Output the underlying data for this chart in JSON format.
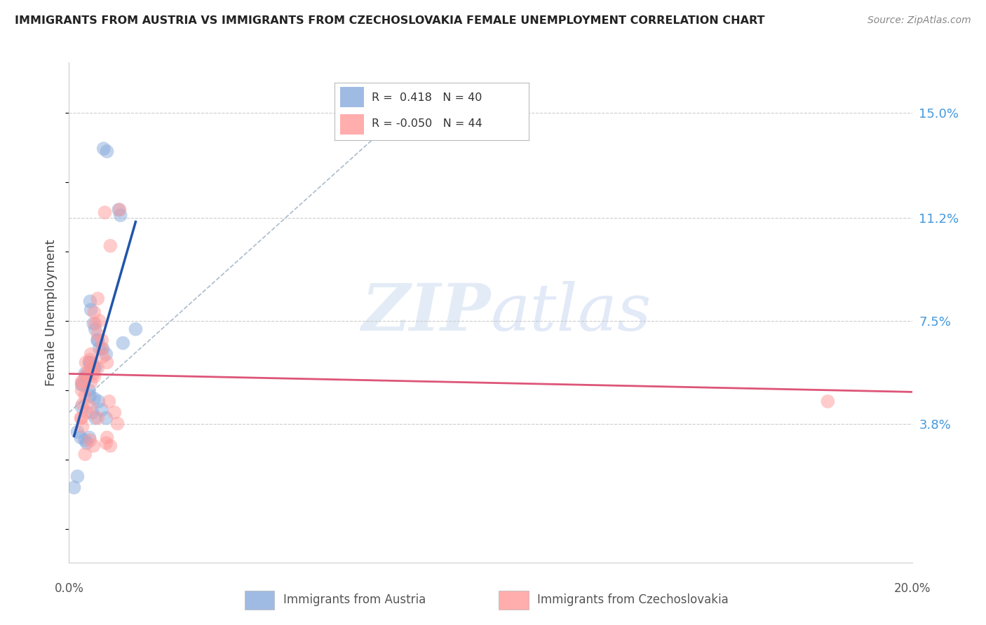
{
  "title": "IMMIGRANTS FROM AUSTRIA VS IMMIGRANTS FROM CZECHOSLOVAKIA FEMALE UNEMPLOYMENT CORRELATION CHART",
  "source": "Source: ZipAtlas.com",
  "ylabel": "Female Unemployment",
  "ylabel_right_labels": [
    "15.0%",
    "11.2%",
    "7.5%",
    "3.8%"
  ],
  "ylabel_right_vals": [
    0.15,
    0.112,
    0.075,
    0.038
  ],
  "xlim": [
    0.0,
    0.2
  ],
  "ylim": [
    -0.012,
    0.168
  ],
  "blue_color": "#88AADD",
  "pink_color": "#FF9999",
  "blue_line_color": "#2255AA",
  "pink_line_color": "#DD5577",
  "dashed_line_color": "#AABBCC",
  "austria_x": [
    0.0082,
    0.009,
    0.0118,
    0.0122,
    0.005,
    0.0052,
    0.0058,
    0.0062,
    0.0068,
    0.0072,
    0.0048,
    0.005,
    0.006,
    0.0062,
    0.004,
    0.0042,
    0.003,
    0.0032,
    0.0038,
    0.0068,
    0.008,
    0.0088,
    0.0128,
    0.0158,
    0.0048,
    0.005,
    0.006,
    0.003,
    0.007,
    0.0078,
    0.0055,
    0.0062,
    0.002,
    0.0028,
    0.0038,
    0.0042,
    0.0048,
    0.0088,
    0.002,
    0.0012
  ],
  "austria_y": [
    0.137,
    0.136,
    0.115,
    0.113,
    0.082,
    0.079,
    0.074,
    0.072,
    0.068,
    0.065,
    0.06,
    0.06,
    0.058,
    0.058,
    0.055,
    0.055,
    0.052,
    0.052,
    0.056,
    0.068,
    0.065,
    0.063,
    0.067,
    0.072,
    0.05,
    0.048,
    0.047,
    0.044,
    0.046,
    0.043,
    0.042,
    0.04,
    0.035,
    0.033,
    0.032,
    0.031,
    0.033,
    0.04,
    0.019,
    0.015
  ],
  "czech_x": [
    0.0068,
    0.0085,
    0.0098,
    0.012,
    0.006,
    0.0062,
    0.0068,
    0.0072,
    0.0078,
    0.0052,
    0.005,
    0.0058,
    0.0052,
    0.0042,
    0.0042,
    0.004,
    0.0032,
    0.003,
    0.003,
    0.0078,
    0.009,
    0.008,
    0.0068,
    0.0058,
    0.006,
    0.0052,
    0.0038,
    0.0032,
    0.005,
    0.0042,
    0.003,
    0.0028,
    0.0032,
    0.0068,
    0.0095,
    0.0108,
    0.0115,
    0.18,
    0.005,
    0.0058,
    0.0088,
    0.009,
    0.0098,
    0.0038
  ],
  "czech_y": [
    0.083,
    0.114,
    0.102,
    0.115,
    0.078,
    0.074,
    0.07,
    0.075,
    0.068,
    0.063,
    0.061,
    0.059,
    0.058,
    0.056,
    0.055,
    0.06,
    0.053,
    0.053,
    0.05,
    0.065,
    0.06,
    0.062,
    0.058,
    0.056,
    0.055,
    0.053,
    0.048,
    0.045,
    0.044,
    0.042,
    0.04,
    0.04,
    0.037,
    0.04,
    0.046,
    0.042,
    0.038,
    0.046,
    0.032,
    0.03,
    0.031,
    0.033,
    0.03,
    0.027
  ]
}
